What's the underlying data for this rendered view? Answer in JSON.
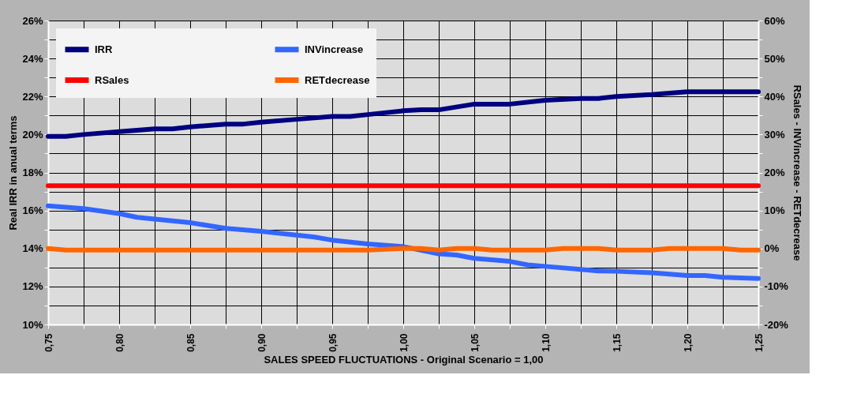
{
  "chart_data": {
    "type": "line",
    "xlabel": "SALES SPEED FLUCTUATIONS - Original Scenario = 1,00",
    "ylabel": "Real IRR in anual terms",
    "y2label": "RSales - INVincrease - RETdecrease",
    "xlim": [
      0.75,
      1.25
    ],
    "xticks": [
      {
        "value": 0.75,
        "label": "0,75"
      },
      {
        "value": 0.775,
        "label": null
      },
      {
        "value": 0.8,
        "label": "0,80"
      },
      {
        "value": 0.825,
        "label": null
      },
      {
        "value": 0.85,
        "label": "0,85"
      },
      {
        "value": 0.875,
        "label": null
      },
      {
        "value": 0.9,
        "label": "0,90"
      },
      {
        "value": 0.925,
        "label": null
      },
      {
        "value": 0.95,
        "label": "0,95"
      },
      {
        "value": 0.975,
        "label": null
      },
      {
        "value": 1.0,
        "label": "1,00"
      },
      {
        "value": 1.025,
        "label": null
      },
      {
        "value": 1.05,
        "label": "1,05"
      },
      {
        "value": 1.075,
        "label": null
      },
      {
        "value": 1.1,
        "label": "1,10"
      },
      {
        "value": 1.125,
        "label": null
      },
      {
        "value": 1.15,
        "label": "1,15"
      },
      {
        "value": 1.175,
        "label": null
      },
      {
        "value": 1.2,
        "label": "1,20"
      },
      {
        "value": 1.225,
        "label": null
      },
      {
        "value": 1.25,
        "label": "1,25"
      }
    ],
    "ylim": [
      10,
      26
    ],
    "yticks": [
      {
        "value": 10,
        "label": "10%"
      },
      {
        "value": 11,
        "label": null
      },
      {
        "value": 12,
        "label": "12%"
      },
      {
        "value": 13,
        "label": null
      },
      {
        "value": 14,
        "label": "14%"
      },
      {
        "value": 15,
        "label": null
      },
      {
        "value": 16,
        "label": "16%"
      },
      {
        "value": 17,
        "label": null
      },
      {
        "value": 18,
        "label": "18%"
      },
      {
        "value": 19,
        "label": null
      },
      {
        "value": 20,
        "label": "20%"
      },
      {
        "value": 21,
        "label": null
      },
      {
        "value": 22,
        "label": "22%"
      },
      {
        "value": 23,
        "label": null
      },
      {
        "value": 24,
        "label": "24%"
      },
      {
        "value": 25,
        "label": null
      },
      {
        "value": 26,
        "label": "26%"
      }
    ],
    "y2lim": [
      -20,
      60
    ],
    "y2ticks": [
      {
        "value": -20,
        "label": "-20%"
      },
      {
        "value": -15,
        "label": null
      },
      {
        "value": -10,
        "label": "-10%"
      },
      {
        "value": -5,
        "label": null
      },
      {
        "value": 0,
        "label": "0%"
      },
      {
        "value": 5,
        "label": null
      },
      {
        "value": 10,
        "label": "10%"
      },
      {
        "value": 15,
        "label": null
      },
      {
        "value": 20,
        "label": "20%"
      },
      {
        "value": 25,
        "label": null
      },
      {
        "value": 30,
        "label": "30%"
      },
      {
        "value": 35,
        "label": null
      },
      {
        "value": 40,
        "label": "40%"
      },
      {
        "value": 45,
        "label": null
      },
      {
        "value": 50,
        "label": "50%"
      },
      {
        "value": 55,
        "label": null
      },
      {
        "value": 60,
        "label": "60%"
      }
    ],
    "grid": true,
    "legend": "top left",
    "series": [
      {
        "name": "IRR",
        "color": "#000080",
        "x": [
          0.75,
          0.7625,
          0.775,
          0.8,
          0.825,
          0.8375,
          0.85,
          0.875,
          0.8875,
          0.9,
          0.925,
          0.95,
          0.9625,
          0.975,
          1.0,
          1.0125,
          1.025,
          1.05,
          1.075,
          1.1,
          1.125,
          1.1375,
          1.15,
          1.175,
          1.2,
          1.225,
          1.25
        ],
        "values": [
          19.9,
          19.9,
          20.0,
          20.15,
          20.3,
          20.3,
          20.4,
          20.55,
          20.55,
          20.65,
          20.8,
          20.95,
          20.95,
          21.05,
          21.25,
          21.3,
          21.3,
          21.6,
          21.6,
          21.8,
          21.9,
          21.9,
          22.0,
          22.1,
          22.25,
          22.25,
          22.25
        ]
      },
      {
        "name": "RSales",
        "color": "#ff0000",
        "axis": "y2",
        "x": [
          0.75,
          1.25
        ],
        "values": [
          16.5,
          16.5
        ]
      },
      {
        "name": "INVincrease",
        "color": "#3366ff",
        "axis": "y2",
        "x": [
          0.75,
          0.775,
          0.8,
          0.8125,
          0.85,
          0.875,
          0.9,
          0.9375,
          0.95,
          0.975,
          1.0,
          1.025,
          1.0375,
          1.05,
          1.075,
          1.0875,
          1.1,
          1.125,
          1.1375,
          1.15,
          1.175,
          1.2,
          1.2125,
          1.225,
          1.25
        ],
        "values": [
          11.2,
          10.5,
          9.2,
          8.2,
          6.8,
          5.3,
          4.5,
          3.0,
          2.2,
          1.2,
          0.5,
          -1.4,
          -1.7,
          -2.6,
          -3.4,
          -4.3,
          -4.7,
          -5.5,
          -5.9,
          -6.0,
          -6.4,
          -7.1,
          -7.1,
          -7.6,
          -7.9
        ]
      },
      {
        "name": "RETdecrease",
        "color": "#ff6600",
        "axis": "y2",
        "x": [
          0.75,
          0.7625,
          0.975,
          1.0,
          1.0125,
          1.025,
          1.0375,
          1.05,
          1.0625,
          1.1,
          1.1125,
          1.1375,
          1.15,
          1.175,
          1.1875,
          1.225,
          1.2375,
          1.25
        ],
        "values": [
          0.0,
          -0.4,
          -0.4,
          0.0,
          0.0,
          -0.4,
          0.0,
          0.0,
          -0.4,
          -0.4,
          0.0,
          0.0,
          -0.4,
          -0.4,
          0.0,
          0.0,
          -0.4,
          -0.4
        ]
      }
    ]
  }
}
